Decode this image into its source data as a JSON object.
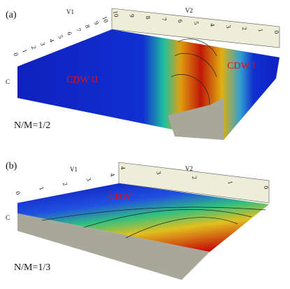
{
  "panels": [
    {
      "label": "(a)",
      "ratio": "N/M=1/2",
      "regions": [
        "CDW II",
        "CDW I"
      ],
      "axis_v1": "V1",
      "axis_v2": "V2",
      "axis_c": "C",
      "v1_ticks": [
        0,
        1,
        2,
        3,
        4,
        5,
        6,
        7,
        8,
        9,
        10
      ],
      "v2_ticks": [
        10,
        9,
        8,
        7,
        6,
        5,
        4,
        3,
        2,
        1,
        0
      ]
    },
    {
      "label": "(b)",
      "ratio": "N/M=1/3",
      "regions": [
        "CDW"
      ],
      "axis_v1": "V1",
      "axis_v2": "V2",
      "axis_c": "C",
      "v1_ticks": [
        0,
        1,
        2,
        3,
        4
      ],
      "v2_ticks": [
        4,
        3,
        2,
        1,
        0
      ]
    }
  ]
}
